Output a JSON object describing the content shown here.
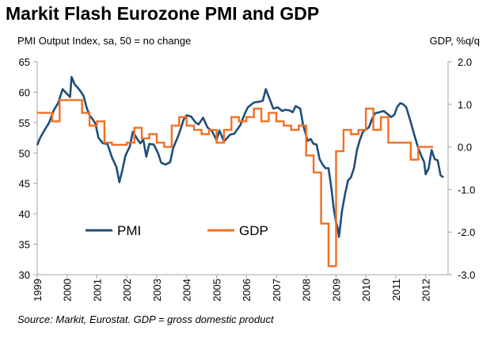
{
  "chart_data": {
    "type": "line",
    "title": "Markit Flash Eurozone PMI and GDP",
    "left_axis_label": "PMI Output Index, sa, 50 = no change",
    "right_axis_label": "GDP, %q/q",
    "source": "Source: Markit, Eurostat. GDP = gross domestic product",
    "x_ticks": [
      "1999",
      "2000",
      "2001",
      "2002",
      "2003",
      "2004",
      "2005",
      "2006",
      "2007",
      "2008",
      "2009",
      "2010",
      "2011",
      "2012"
    ],
    "y_left": {
      "lim": [
        30,
        65
      ],
      "ticks": [
        "65",
        "60",
        "55",
        "50",
        "45",
        "40",
        "35",
        "30"
      ]
    },
    "y_right": {
      "lim": [
        -3.0,
        2.0
      ],
      "ticks": [
        "2.0",
        "1.0",
        "0.0",
        "-1.0",
        "-2.0",
        "-3.0"
      ]
    },
    "colors": {
      "pmi": "#1f4e79",
      "gdp": "#f36f21",
      "axis": "#a6a6a6"
    },
    "legend": [
      {
        "key": "pmi",
        "label": "PMI"
      },
      {
        "key": "gdp",
        "label": "GDP"
      }
    ],
    "series": [
      {
        "name": "PMI",
        "axis": "left",
        "type": "monthly",
        "points": [
          [
            1999.0,
            51.3
          ],
          [
            1999.1,
            52.5
          ],
          [
            1999.25,
            53.8
          ],
          [
            1999.4,
            55
          ],
          [
            1999.55,
            57
          ],
          [
            1999.7,
            58.2
          ],
          [
            1999.85,
            60.5
          ],
          [
            2000.0,
            59.7
          ],
          [
            2000.1,
            59.2
          ],
          [
            2000.15,
            62.5
          ],
          [
            2000.25,
            61.3
          ],
          [
            2000.4,
            60.5
          ],
          [
            2000.55,
            59.4
          ],
          [
            2000.65,
            57.5
          ],
          [
            2000.75,
            56.2
          ],
          [
            2000.85,
            55.6
          ],
          [
            2000.95,
            54.8
          ],
          [
            2001.05,
            52.5
          ],
          [
            2001.2,
            51.6
          ],
          [
            2001.35,
            51.5
          ],
          [
            2001.5,
            49.3
          ],
          [
            2001.65,
            47.7
          ],
          [
            2001.75,
            45.2
          ],
          [
            2001.85,
            47.2
          ],
          [
            2001.95,
            49.5
          ],
          [
            2002.1,
            51.1
          ],
          [
            2002.2,
            53.5
          ],
          [
            2002.35,
            52.3
          ],
          [
            2002.45,
            51.6
          ],
          [
            2002.55,
            52.2
          ],
          [
            2002.65,
            49.4
          ],
          [
            2002.75,
            51.5
          ],
          [
            2002.9,
            51.4
          ],
          [
            2003.05,
            49.9
          ],
          [
            2003.15,
            48.4
          ],
          [
            2003.3,
            48.1
          ],
          [
            2003.45,
            48.5
          ],
          [
            2003.55,
            50.8
          ],
          [
            2003.75,
            53.2
          ],
          [
            2003.9,
            55.5
          ],
          [
            2004.0,
            56.2
          ],
          [
            2004.15,
            56.0
          ],
          [
            2004.3,
            55.0
          ],
          [
            2004.4,
            54.7
          ],
          [
            2004.55,
            55.8
          ],
          [
            2004.7,
            54.2
          ],
          [
            2004.85,
            53.6
          ],
          [
            2005.0,
            52.1
          ],
          [
            2005.1,
            53.7
          ],
          [
            2005.25,
            51.9
          ],
          [
            2005.45,
            53.0
          ],
          [
            2005.6,
            53.2
          ],
          [
            2005.8,
            54.6
          ],
          [
            2005.95,
            56.5
          ],
          [
            2006.05,
            57.5
          ],
          [
            2006.25,
            58.3
          ],
          [
            2006.4,
            58.4
          ],
          [
            2006.55,
            58.6
          ],
          [
            2006.65,
            60.5
          ],
          [
            2006.8,
            58.6
          ],
          [
            2006.9,
            57.3
          ],
          [
            2007.05,
            57.5
          ],
          [
            2007.2,
            56.9
          ],
          [
            2007.3,
            57.1
          ],
          [
            2007.45,
            57.0
          ],
          [
            2007.55,
            56.7
          ],
          [
            2007.65,
            57.7
          ],
          [
            2007.8,
            57.3
          ],
          [
            2007.9,
            54.6
          ],
          [
            2008.05,
            52.0
          ],
          [
            2008.15,
            52.3
          ],
          [
            2008.25,
            51.5
          ],
          [
            2008.35,
            51.4
          ],
          [
            2008.45,
            49.0
          ],
          [
            2008.55,
            48.1
          ],
          [
            2008.65,
            47.5
          ],
          [
            2008.75,
            47.5
          ],
          [
            2008.85,
            44.0
          ],
          [
            2008.92,
            41.0
          ],
          [
            2009.0,
            38.6
          ],
          [
            2009.05,
            37.8
          ],
          [
            2009.1,
            36.2
          ],
          [
            2009.2,
            40.5
          ],
          [
            2009.3,
            43.2
          ],
          [
            2009.4,
            45.5
          ],
          [
            2009.5,
            46.0
          ],
          [
            2009.6,
            47.5
          ],
          [
            2009.7,
            50.5
          ],
          [
            2009.8,
            52.2
          ],
          [
            2009.9,
            53.5
          ],
          [
            2010.0,
            53.9
          ],
          [
            2010.1,
            54.2
          ],
          [
            2010.2,
            55.5
          ],
          [
            2010.3,
            56.5
          ],
          [
            2010.45,
            56.7
          ],
          [
            2010.6,
            56.9
          ],
          [
            2010.7,
            56.5
          ],
          [
            2010.85,
            55.9
          ],
          [
            2010.95,
            56.3
          ],
          [
            2011.05,
            57.6
          ],
          [
            2011.15,
            58.2
          ],
          [
            2011.25,
            58.0
          ],
          [
            2011.35,
            57.5
          ],
          [
            2011.5,
            55.1
          ],
          [
            2011.6,
            53.3
          ],
          [
            2011.75,
            50.8
          ],
          [
            2011.85,
            49.6
          ],
          [
            2011.95,
            48.5
          ],
          [
            2012.0,
            46.5
          ],
          [
            2012.1,
            47.5
          ],
          [
            2012.2,
            50.5
          ],
          [
            2012.3,
            49.0
          ],
          [
            2012.4,
            48.8
          ],
          [
            2012.5,
            46.3
          ],
          [
            2012.6,
            46.0
          ]
        ]
      },
      {
        "name": "GDP",
        "axis": "right",
        "type": "quarterly",
        "quarters_start": 1999.0,
        "values": [
          0.8,
          0.8,
          0.6,
          1.1,
          1.1,
          1.1,
          0.8,
          0.5,
          0.6,
          0.1,
          0.05,
          0.05,
          0.1,
          0.45,
          0.2,
          0.3,
          0.1,
          0.0,
          0.5,
          0.7,
          0.5,
          0.4,
          0.3,
          0.4,
          0.1,
          0.4,
          0.7,
          0.6,
          0.7,
          0.9,
          0.6,
          0.8,
          0.6,
          0.5,
          0.4,
          0.5,
          -0.2,
          -0.6,
          -1.8,
          -2.8,
          -0.1,
          0.4,
          0.3,
          0.4,
          0.9,
          0.4,
          0.7,
          0.1,
          0.1,
          0.1,
          -0.3,
          0.0,
          0.0
        ]
      }
    ]
  }
}
